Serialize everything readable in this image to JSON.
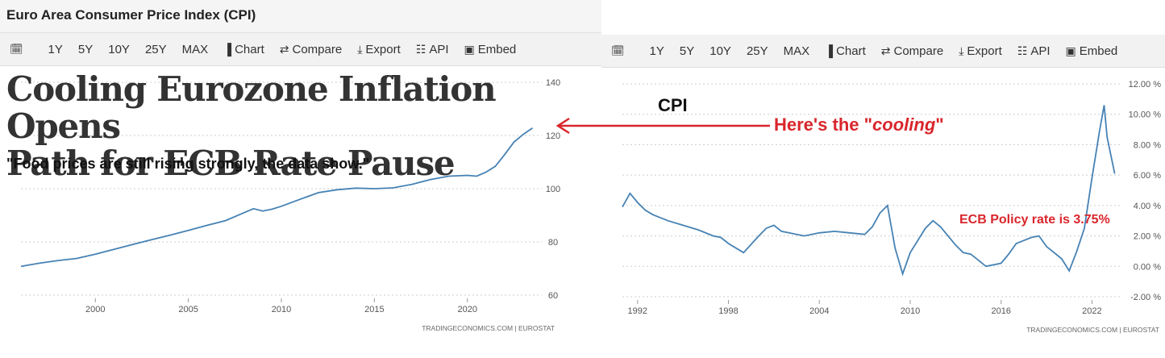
{
  "left_panel": {
    "title": "Euro Area Consumer Price Index (CPI)",
    "toolbar": [
      {
        "icon": "calendar-icon",
        "label": ""
      },
      {
        "icon": "",
        "label": "1Y"
      },
      {
        "icon": "",
        "label": "5Y"
      },
      {
        "icon": "",
        "label": "10Y"
      },
      {
        "icon": "",
        "label": "25Y"
      },
      {
        "icon": "",
        "label": "MAX"
      },
      {
        "icon": "bar-chart-icon",
        "label": "Chart"
      },
      {
        "icon": "shuffle-icon",
        "label": "Compare"
      },
      {
        "icon": "download-icon",
        "label": "Export"
      },
      {
        "icon": "grid-icon",
        "label": "API"
      },
      {
        "icon": "image-icon",
        "label": "Embed"
      }
    ],
    "headline_line1": "Cooling Eurozone Inflation Opens",
    "headline_line2": "Path for ECB Rate Pause",
    "quote": "\"Food prices are still rising strongly, the data show.\"",
    "source": "TRADINGECONOMICS.COM  |  EUROSTAT"
  },
  "right_panel": {
    "toolbar": [
      {
        "icon": "calendar-icon",
        "label": ""
      },
      {
        "icon": "",
        "label": "1Y"
      },
      {
        "icon": "",
        "label": "5Y"
      },
      {
        "icon": "",
        "label": "10Y"
      },
      {
        "icon": "",
        "label": "25Y"
      },
      {
        "icon": "",
        "label": "MAX"
      },
      {
        "icon": "bar-chart-icon",
        "label": "Chart"
      },
      {
        "icon": "shuffle-icon",
        "label": "Compare"
      },
      {
        "icon": "download-icon",
        "label": "Export"
      },
      {
        "icon": "grid-icon",
        "label": "API"
      },
      {
        "icon": "image-icon",
        "label": "Embed"
      }
    ],
    "chart_label": "CPI",
    "annotation_cooling_prefix": "Here's the \"",
    "annotation_cooling_word": "cooling",
    "annotation_cooling_suffix": "\"",
    "annotation_ecb": "ECB Policy rate is 3.75%",
    "source": "TRADINGECONOMICS.COM  |  EUROSTAT"
  },
  "colors": {
    "line": "#4682b4",
    "annotation": "#d9262c",
    "grid": "#cccccc",
    "axis_text": "#555555"
  },
  "chart_data": [
    {
      "type": "line",
      "title": "Euro Area Consumer Price Index (CPI)",
      "x_ticks": [
        "2000",
        "2005",
        "2010",
        "2015",
        "2020"
      ],
      "y_ticks": [
        "60",
        "80",
        "100",
        "120",
        "140"
      ],
      "ylim": [
        60,
        140
      ],
      "xlim": [
        1996,
        2024
      ],
      "grid": true,
      "x": [
        1996.0,
        1997.0,
        1998.0,
        1999.0,
        2000.0,
        2001.0,
        2002.0,
        2003.0,
        2004.0,
        2005.0,
        2006.0,
        2007.0,
        2008.0,
        2008.5,
        2009.0,
        2009.5,
        2010.0,
        2011.0,
        2012.0,
        2013.0,
        2014.0,
        2015.0,
        2016.0,
        2017.0,
        2018.0,
        2019.0,
        2020.0,
        2020.5,
        2021.0,
        2021.5,
        2022.0,
        2022.5,
        2023.0,
        2023.5
      ],
      "values": [
        70.8,
        72.0,
        73.0,
        73.8,
        75.4,
        77.2,
        79.0,
        80.8,
        82.5,
        84.3,
        86.2,
        88.0,
        91.0,
        92.5,
        91.6,
        92.3,
        93.4,
        96.0,
        98.5,
        99.6,
        100.2,
        100.0,
        100.3,
        101.6,
        103.4,
        104.7,
        105.0,
        104.7,
        106.2,
        108.4,
        112.8,
        117.5,
        120.4,
        122.8
      ]
    },
    {
      "type": "line",
      "title": "",
      "x_ticks": [
        "1992",
        "1998",
        "2004",
        "2010",
        "2016",
        "2022"
      ],
      "y_ticks": [
        "12.00 %",
        "10.00 %",
        "8.00 %",
        "6.00 %",
        "4.00 %",
        "2.00 %",
        "0.00 %",
        "-2.00 %"
      ],
      "ylim": [
        -2,
        12
      ],
      "xlim": [
        1991,
        2024
      ],
      "grid": true,
      "x": [
        1991.0,
        1991.5,
        1992.0,
        1992.5,
        1993.0,
        1993.5,
        1994.0,
        1995.0,
        1996.0,
        1997.0,
        1997.5,
        1998.0,
        1998.5,
        1999.0,
        2000.0,
        2000.5,
        2001.0,
        2001.5,
        2002.0,
        2003.0,
        2004.0,
        2005.0,
        2006.0,
        2007.0,
        2007.5,
        2008.0,
        2008.5,
        2009.0,
        2009.5,
        2010.0,
        2011.0,
        2011.5,
        2012.0,
        2013.0,
        2013.5,
        2014.0,
        2014.5,
        2015.0,
        2016.0,
        2016.5,
        2017.0,
        2018.0,
        2018.5,
        2019.0,
        2020.0,
        2020.5,
        2021.0,
        2021.5,
        2022.0,
        2022.5,
        2022.8,
        2023.0,
        2023.5
      ],
      "values": [
        3.9,
        4.8,
        4.2,
        3.7,
        3.4,
        3.2,
        3.0,
        2.7,
        2.4,
        2.0,
        1.9,
        1.5,
        1.2,
        0.9,
        2.0,
        2.5,
        2.7,
        2.3,
        2.2,
        2.0,
        2.2,
        2.3,
        2.2,
        2.1,
        2.6,
        3.5,
        4.0,
        1.2,
        -0.5,
        0.9,
        2.5,
        3.0,
        2.6,
        1.4,
        0.9,
        0.8,
        0.4,
        0.0,
        0.2,
        0.8,
        1.5,
        1.9,
        2.0,
        1.3,
        0.5,
        -0.3,
        1.0,
        2.5,
        5.8,
        8.9,
        10.6,
        8.5,
        6.1
      ]
    }
  ]
}
